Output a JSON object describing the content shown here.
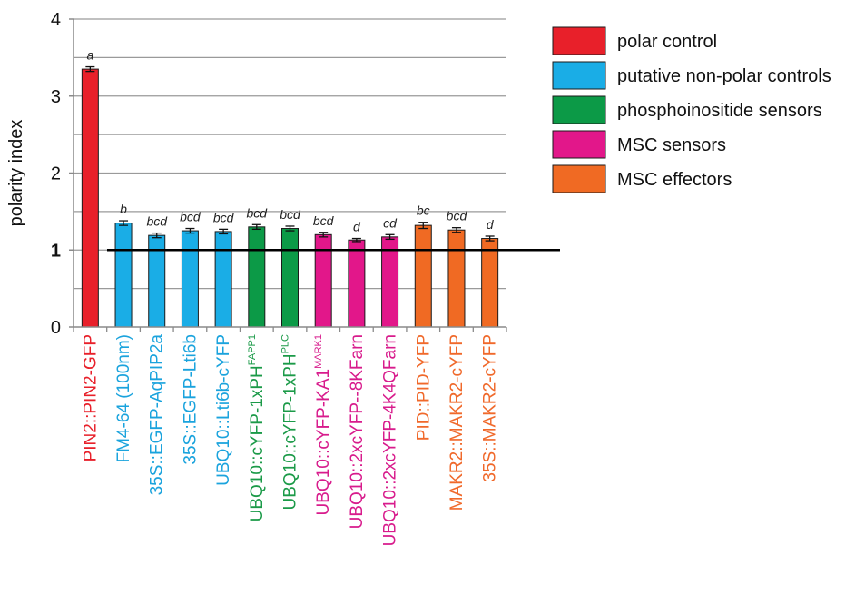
{
  "chart_data": {
    "type": "bar",
    "ylabel": "polarity index",
    "ylim": [
      0,
      4
    ],
    "yticks": [
      "0",
      "1",
      "2",
      "3",
      "4"
    ],
    "minor_gridline_step": 0.5,
    "grid": true,
    "legend_position": "top-right",
    "reference_line": {
      "y": 1
    },
    "categories": [
      {
        "label": "PIN2::PIN2-GFP",
        "sup": ""
      },
      {
        "label": "FM4-64 (100nm)",
        "sup": ""
      },
      {
        "label": "35S::EGFP-AqPIP2a",
        "sup": ""
      },
      {
        "label": "35S::EGFP-Lti6b",
        "sup": ""
      },
      {
        "label": "UBQ10::Lti6b-cYFP",
        "sup": ""
      },
      {
        "label": "UBQ10::cYFP-1xPH",
        "sup": "FAPP1"
      },
      {
        "label": "UBQ10::cYFP-1xPH",
        "sup": "PLC"
      },
      {
        "label": "UBQ10::cYFP-KA1",
        "sup": "MARK1"
      },
      {
        "label": "UBQ10::2xcYFP--8KFarn",
        "sup": ""
      },
      {
        "label": "UBQ10::2xcYFP-4K4QFarn",
        "sup": ""
      },
      {
        "label": "PID::PID-YFP",
        "sup": ""
      },
      {
        "label": "MAKR2::MAKR2-cYFP",
        "sup": ""
      },
      {
        "label": "35S::MAKR2-cYFP",
        "sup": ""
      }
    ],
    "values": [
      3.35,
      1.35,
      1.19,
      1.25,
      1.24,
      1.3,
      1.28,
      1.2,
      1.13,
      1.17,
      1.32,
      1.26,
      1.15
    ],
    "errors": [
      0.03,
      0.03,
      0.03,
      0.03,
      0.03,
      0.03,
      0.03,
      0.03,
      0.02,
      0.03,
      0.04,
      0.03,
      0.03
    ],
    "significance_letters": [
      "a",
      "b",
      "bcd",
      "bcd",
      "bcd",
      "bcd",
      "bcd",
      "bcd",
      "d",
      "cd",
      "bc",
      "bcd",
      "d"
    ],
    "bar_groups": [
      0,
      1,
      1,
      1,
      1,
      2,
      2,
      3,
      3,
      3,
      4,
      4,
      4
    ],
    "groups": [
      {
        "name": "polar control",
        "color": "#e8202a",
        "label_color": "#e8202a"
      },
      {
        "name": "putative non-polar controls",
        "color": "#1aade6",
        "label_color": "#1aa3dd"
      },
      {
        "name": "phosphoinositide sensors",
        "color": "#0c9a47",
        "label_color": "#1b9a48"
      },
      {
        "name": "MSC sensors",
        "color": "#e2178a",
        "label_color": "#d81b8c"
      },
      {
        "name": "MSC effectors",
        "color": "#f06a23",
        "label_color": "#f0692b"
      }
    ]
  }
}
